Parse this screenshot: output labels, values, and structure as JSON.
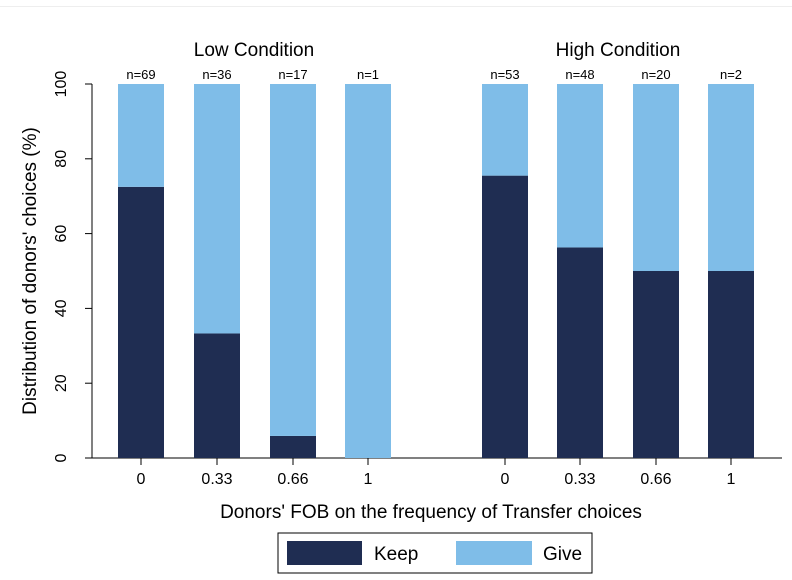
{
  "chart_data": {
    "type": "bar",
    "stacked": true,
    "percent": true,
    "ylabel": "Distribution of donors' choices (%)",
    "xlabel": "Donors' FOB on the frequency of Transfer choices",
    "ylim": [
      0,
      100
    ],
    "yticks": [
      "0",
      "20",
      "40",
      "60",
      "80",
      "100"
    ],
    "grid": false,
    "legend": {
      "position": "bottom",
      "items": [
        "Keep",
        "Give"
      ]
    },
    "colors": {
      "Keep": "#1f2d52",
      "Give": "#7fbde8"
    },
    "panels": [
      {
        "title": "Low Condition",
        "categories": [
          "0",
          "0.33",
          "0.66",
          "1"
        ],
        "n_labels": [
          "n=69",
          "n=36",
          "n=17",
          "n=1"
        ],
        "series": [
          {
            "name": "Keep",
            "values": [
              72.5,
              33.3,
              5.9,
              0
            ]
          },
          {
            "name": "Give",
            "values": [
              27.5,
              66.7,
              94.1,
              100
            ]
          }
        ]
      },
      {
        "title": "High Condition",
        "categories": [
          "0",
          "0.33",
          "0.66",
          "1"
        ],
        "n_labels": [
          "n=53",
          "n=48",
          "n=20",
          "n=2"
        ],
        "series": [
          {
            "name": "Keep",
            "values": [
              75.5,
              56.3,
              50,
              50
            ]
          },
          {
            "name": "Give",
            "values": [
              24.5,
              43.7,
              50,
              50
            ]
          }
        ]
      }
    ]
  }
}
